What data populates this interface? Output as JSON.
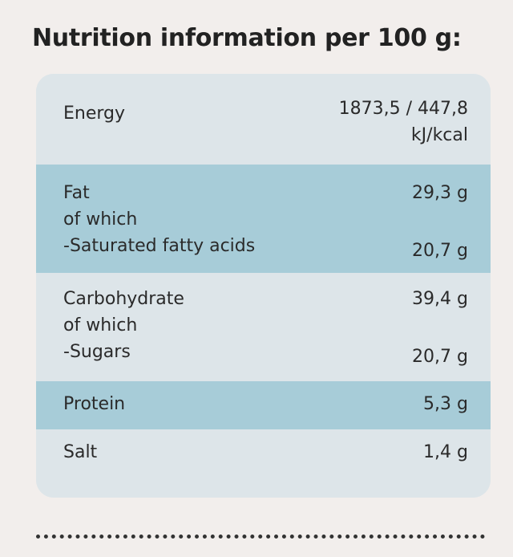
{
  "title": "Nutrition information per 100 g:",
  "rows": [
    {
      "labels": [
        "Energy"
      ],
      "values": [
        "1873,5 / 447,8",
        "kJ/kcal"
      ]
    },
    {
      "labels": [
        "Fat",
        "of which",
        "-Saturated fatty acids"
      ],
      "values": [
        "29,3 g",
        "20,7 g"
      ]
    },
    {
      "labels": [
        "Carbohydrate",
        "of which",
        "-Sugars"
      ],
      "values": [
        "39,4 g",
        "20,7 g"
      ]
    },
    {
      "labels": [
        "Protein"
      ],
      "values": [
        "5,3 g"
      ]
    },
    {
      "labels": [
        "Salt"
      ],
      "values": [
        "1,4 g"
      ]
    }
  ]
}
